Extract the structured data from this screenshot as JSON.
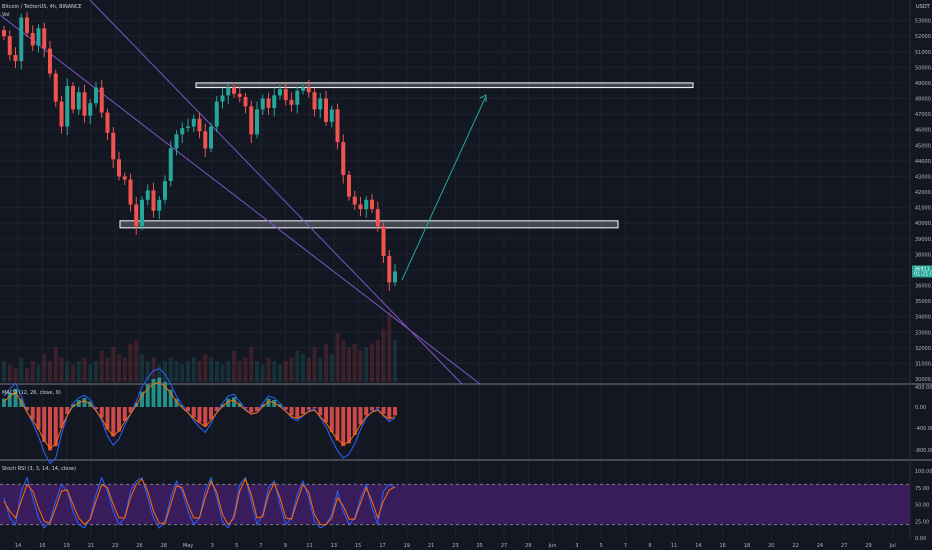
{
  "header": {
    "title": "Bitcoin / TetherUS, 4h, BINANCE",
    "vol_label": "Vol",
    "currency": "USDT"
  },
  "macd_title": "MACD (12, 26, close, 9)",
  "stoch_title": "Stoch RSI (3, 3, 14, 14, close)",
  "colors": {
    "background": "#131722",
    "up": "#26a69a",
    "down": "#ef5350",
    "zone_fill": "#d1d4dc",
    "trendline": "#7e57c2",
    "projection": "#26a69a",
    "stoch_band": "#4a1f73",
    "k_line": "#2962ff",
    "d_line": "#ff6d00"
  },
  "price_axis": [
    "53000.00",
    "52000.00",
    "51000.00",
    "50000.00",
    "49000.00",
    "48000.00",
    "47000.00",
    "46000.00",
    "45000.00",
    "44000.00",
    "43000.00",
    "42000.00",
    "41000.00",
    "40000.00",
    "39000.00",
    "38000.00",
    "37000.00",
    "36000.00",
    "35000.00",
    "34000.00",
    "33000.00",
    "32000.00",
    "31000.00",
    "30000.00"
  ],
  "price_badges": {
    "last": "36911.26",
    "timer": "01:21:02"
  },
  "macd_axis": [
    "400.00",
    "0.00",
    "-400.00",
    "-800.00"
  ],
  "stoch_axis": [
    "100.00",
    "75.00",
    "50.00",
    "25.00",
    "0.00"
  ],
  "time_axis": [
    "14",
    "16",
    "19",
    "21",
    "23",
    "26",
    "28",
    "May",
    "3",
    "5",
    "7",
    "9",
    "11",
    "13",
    "15",
    "17",
    "19",
    "21",
    "23",
    "25",
    "27",
    "29",
    "Jun",
    "3",
    "5",
    "7",
    "9",
    "11",
    "14",
    "16",
    "18",
    "20",
    "22",
    "24",
    "27",
    "29",
    "Jul"
  ],
  "chart_data": {
    "type": "candlestick",
    "title": "Bitcoin / TetherUS, 4h, BINANCE",
    "ylim": [
      30000,
      54000
    ],
    "y_scale": "linear",
    "zones": [
      {
        "name": "resistance",
        "low": 48700,
        "high": 49000
      },
      {
        "name": "support",
        "low": 39700,
        "high": 40150
      }
    ],
    "close_path": [
      52000,
      50800,
      50400,
      53200,
      52200,
      51400,
      52500,
      51200,
      49600,
      47800,
      46200,
      48800,
      47300,
      48400,
      46900,
      47700,
      48700,
      47100,
      45800,
      44100,
      43000,
      42800,
      41200,
      39800,
      41500,
      42100,
      40800,
      41500,
      42700,
      44800,
      45700,
      46100,
      46200,
      46700,
      45900,
      44800,
      46200,
      47800,
      48200,
      48700,
      48300,
      48100,
      47500,
      45700,
      47300,
      48000,
      47400,
      48200,
      48600,
      47900,
      47600,
      48500,
      48700,
      48400,
      47300,
      48000,
      46500,
      47300,
      45200,
      43100,
      41700,
      41200,
      40900,
      41500,
      40900,
      39800,
      37900,
      36200,
      36900
    ],
    "volume_rel": [
      0.3,
      0.25,
      0.2,
      0.35,
      0.2,
      0.3,
      0.25,
      0.4,
      0.3,
      0.5,
      0.35,
      0.3,
      0.25,
      0.3,
      0.35,
      0.25,
      0.3,
      0.45,
      0.35,
      0.5,
      0.4,
      0.35,
      0.55,
      0.6,
      0.4,
      0.3,
      0.35,
      0.25,
      0.3,
      0.35,
      0.3,
      0.25,
      0.3,
      0.35,
      0.3,
      0.4,
      0.35,
      0.3,
      0.25,
      0.3,
      0.45,
      0.3,
      0.35,
      0.5,
      0.3,
      0.25,
      0.35,
      0.3,
      0.25,
      0.3,
      0.35,
      0.45,
      0.4,
      0.35,
      0.5,
      0.35,
      0.55,
      0.4,
      0.7,
      0.6,
      0.5,
      0.55,
      0.45,
      0.5,
      0.55,
      0.6,
      0.75,
      1.0,
      0.6
    ],
    "macd_hist": [
      120,
      200,
      260,
      120,
      -50,
      -180,
      -320,
      -500,
      -620,
      -560,
      -300,
      -100,
      40,
      100,
      130,
      80,
      -30,
      -150,
      -320,
      -420,
      -350,
      -200,
      -80,
      60,
      220,
      320,
      400,
      420,
      360,
      250,
      120,
      20,
      -60,
      -150,
      -220,
      -280,
      -180,
      -60,
      40,
      120,
      140,
      60,
      -20,
      -80,
      -60,
      40,
      120,
      100,
      40,
      -40,
      -120,
      -150,
      -100,
      -40,
      -20,
      -120,
      -220,
      -360,
      -480,
      -560,
      -520,
      -400,
      -250,
      -120,
      -50,
      -20,
      -100,
      -160,
      -120
    ],
    "stoch_k": [
      60,
      30,
      20,
      70,
      90,
      60,
      30,
      15,
      25,
      55,
      80,
      70,
      40,
      20,
      15,
      30,
      65,
      90,
      70,
      40,
      20,
      30,
      70,
      85,
      90,
      60,
      30,
      15,
      25,
      60,
      85,
      70,
      40,
      20,
      30,
      70,
      90,
      60,
      25,
      15,
      35,
      80,
      90,
      55,
      20,
      35,
      75,
      85,
      50,
      20,
      30,
      65,
      85,
      60,
      25,
      15,
      20,
      35,
      70,
      40,
      20,
      30,
      60,
      80,
      45,
      20,
      70,
      80,
      75
    ],
    "stoch_d": [
      55,
      40,
      30,
      55,
      80,
      70,
      45,
      25,
      22,
      45,
      70,
      72,
      50,
      30,
      20,
      28,
      55,
      80,
      75,
      50,
      30,
      30,
      60,
      80,
      88,
      70,
      40,
      22,
      22,
      50,
      78,
      75,
      50,
      30,
      30,
      60,
      85,
      68,
      35,
      20,
      30,
      70,
      88,
      65,
      30,
      32,
      65,
      82,
      60,
      30,
      28,
      55,
      80,
      68,
      35,
      20,
      20,
      30,
      60,
      48,
      28,
      28,
      52,
      75,
      55,
      30,
      55,
      72,
      76
    ]
  }
}
